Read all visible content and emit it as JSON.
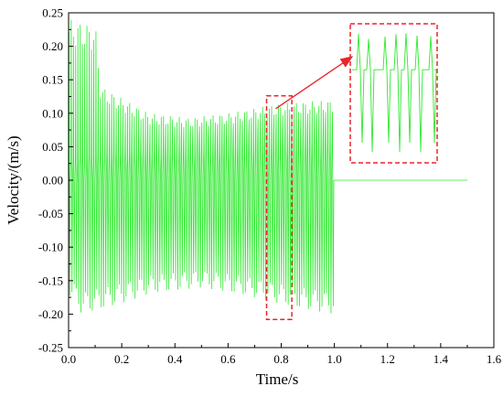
{
  "chart_data": {
    "type": "line",
    "xlabel": "Time/s",
    "ylabel": "Velocity/(m/s)",
    "xlim": [
      0.0,
      1.6
    ],
    "ylim": [
      -0.25,
      0.25
    ],
    "x_ticks": [
      "0.0",
      "0.2",
      "0.4",
      "0.6",
      "0.8",
      "1.0",
      "1.2",
      "1.4",
      "1.6"
    ],
    "y_ticks": [
      "0.25",
      "0.20",
      "0.15",
      "0.10",
      "0.05",
      "0.00",
      "-0.05",
      "-0.10",
      "-0.15",
      "-0.20",
      "-0.25"
    ],
    "grid": false,
    "series": [
      {
        "color": "#2ee82e",
        "signal": {
          "t_start": 0.0,
          "t_oscillation_end": 1.0,
          "t_end": 1.5,
          "pulse_count": 118,
          "upper_envelope": [
            [
              0.0,
              0.24
            ],
            [
              0.1,
              0.23
            ],
            [
              0.12,
              0.14
            ],
            [
              0.3,
              0.1
            ],
            [
              0.45,
              0.093
            ],
            [
              0.6,
              0.1
            ],
            [
              0.8,
              0.115
            ],
            [
              1.0,
              0.12
            ]
          ],
          "lower_envelope": [
            [
              0.0,
              -0.17
            ],
            [
              0.05,
              -0.2
            ],
            [
              0.15,
              -0.19
            ],
            [
              0.3,
              -0.17
            ],
            [
              0.5,
              -0.16
            ],
            [
              0.7,
              -0.175
            ],
            [
              0.85,
              -0.19
            ],
            [
              1.0,
              -0.2
            ]
          ],
          "inner_band_upper": [
            [
              0.0,
              0.03
            ],
            [
              0.2,
              0.05
            ],
            [
              0.5,
              0.065
            ],
            [
              0.8,
              0.075
            ],
            [
              1.0,
              0.08
            ]
          ],
          "inner_band_lower": [
            [
              0.0,
              -0.05
            ],
            [
              0.2,
              -0.08
            ],
            [
              0.5,
              -0.09
            ],
            [
              0.8,
              -0.1
            ],
            [
              1.0,
              -0.11
            ]
          ],
          "steady_value": 0.0
        }
      }
    ],
    "annotations": {
      "highlight_box": {
        "x_range": [
          0.745,
          0.84
        ],
        "y_range": [
          -0.208,
          0.126
        ],
        "color": "#e8262b",
        "style": "dashed"
      },
      "zoom_inset": {
        "color": "#e8262b",
        "style": "dashed",
        "shows": "magnified view of highlighted interval"
      },
      "arrow": {
        "color": "#e8262b",
        "from": "highlight_box",
        "to": "zoom_inset"
      }
    }
  }
}
